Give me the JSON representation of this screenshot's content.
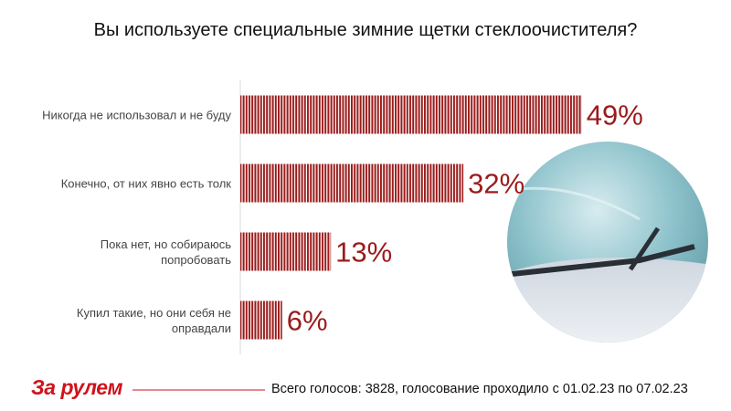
{
  "chart_data": {
    "type": "hbar",
    "title": "Вы используете специальные зимние щетки стеклоочистителя?",
    "categories": [
      "Никогда не использовал и не буду",
      "Конечно, от них явно есть толк",
      "Пока нет, но собираюсь попробовать",
      "Купил такие, но они себя не оправдали"
    ],
    "values": [
      49,
      32,
      13,
      6
    ],
    "value_labels": [
      "49%",
      "32%",
      "13%",
      "6%"
    ],
    "color": "#9b1b1b",
    "xlim": [
      0,
      70
    ],
    "logo": "За рулем",
    "footnote": "Всего голосов: 3828, голосование проходило с 01.02.23 по 07.02.23"
  }
}
